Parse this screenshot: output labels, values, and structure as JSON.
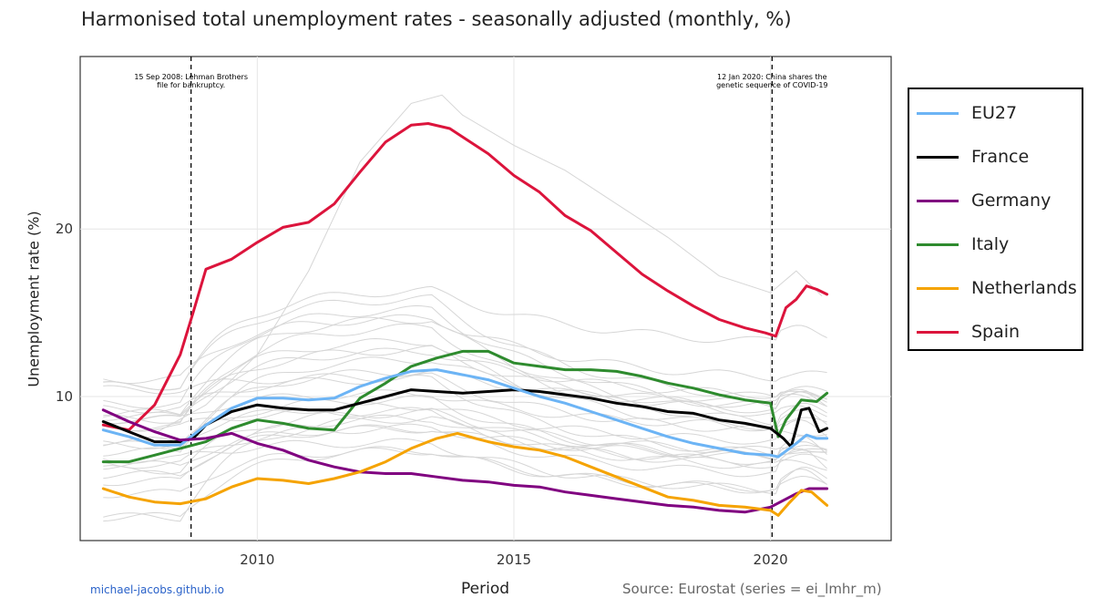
{
  "chart_data": {
    "type": "line",
    "title": "Harmonised total unemployment rates - seasonally adjusted (monthly, %)",
    "xlabel": "Period",
    "ylabel": "Unemployment rate (%)",
    "source": "Source: Eurostat (series = ei_lmhr_m)",
    "site": "michael-jacobs.github.io",
    "xlim": [
      2006.55,
      2022.35
    ],
    "ylim": [
      1.4,
      30.3
    ],
    "x_ticks": [
      {
        "value": 2010,
        "label": "2010"
      },
      {
        "value": 2015,
        "label": "2015"
      },
      {
        "value": 2020,
        "label": "2020"
      }
    ],
    "y_ticks": [
      {
        "value": 10,
        "label": "10"
      },
      {
        "value": 20,
        "label": "20"
      }
    ],
    "grid": true,
    "legend_position": "right",
    "annotations": [
      {
        "x": 2008.71,
        "lines": [
          "15 Sep 2008: Lehman Brothers",
          "file for bankruptcy."
        ]
      },
      {
        "x": 2020.03,
        "lines": [
          "12 Jan 2020: China shares the",
          "genetic sequence of COVID-19"
        ]
      }
    ],
    "series": [
      {
        "name": "Spain",
        "color": "#dc143c",
        "points": [
          [
            2007.0,
            8.3
          ],
          [
            2007.5,
            8.0
          ],
          [
            2008.0,
            9.5
          ],
          [
            2008.5,
            12.5
          ],
          [
            2008.75,
            15.0
          ],
          [
            2009.0,
            17.6
          ],
          [
            2009.5,
            18.2
          ],
          [
            2010.0,
            19.2
          ],
          [
            2010.5,
            20.1
          ],
          [
            2011.0,
            20.4
          ],
          [
            2011.5,
            21.5
          ],
          [
            2012.0,
            23.4
          ],
          [
            2012.5,
            25.2
          ],
          [
            2013.0,
            26.2
          ],
          [
            2013.33,
            26.3
          ],
          [
            2013.75,
            26.0
          ],
          [
            2014.0,
            25.5
          ],
          [
            2014.5,
            24.5
          ],
          [
            2015.0,
            23.2
          ],
          [
            2015.5,
            22.2
          ],
          [
            2016.0,
            20.8
          ],
          [
            2016.5,
            19.9
          ],
          [
            2017.0,
            18.6
          ],
          [
            2017.5,
            17.3
          ],
          [
            2018.0,
            16.3
          ],
          [
            2018.5,
            15.4
          ],
          [
            2019.0,
            14.6
          ],
          [
            2019.5,
            14.1
          ],
          [
            2019.9,
            13.8
          ],
          [
            2020.1,
            13.6
          ],
          [
            2020.3,
            15.3
          ],
          [
            2020.5,
            15.8
          ],
          [
            2020.7,
            16.6
          ],
          [
            2020.9,
            16.4
          ],
          [
            2021.1,
            16.1
          ]
        ]
      },
      {
        "name": "Italy",
        "color": "#2e8b2e",
        "points": [
          [
            2007.0,
            6.1
          ],
          [
            2007.5,
            6.1
          ],
          [
            2008.0,
            6.5
          ],
          [
            2008.5,
            6.9
          ],
          [
            2009.0,
            7.3
          ],
          [
            2009.5,
            8.1
          ],
          [
            2010.0,
            8.6
          ],
          [
            2010.5,
            8.4
          ],
          [
            2011.0,
            8.1
          ],
          [
            2011.5,
            8.0
          ],
          [
            2012.0,
            9.9
          ],
          [
            2012.5,
            10.8
          ],
          [
            2013.0,
            11.8
          ],
          [
            2013.5,
            12.3
          ],
          [
            2014.0,
            12.7
          ],
          [
            2014.5,
            12.7
          ],
          [
            2015.0,
            12.0
          ],
          [
            2015.5,
            11.8
          ],
          [
            2016.0,
            11.6
          ],
          [
            2016.5,
            11.6
          ],
          [
            2017.0,
            11.5
          ],
          [
            2017.5,
            11.2
          ],
          [
            2018.0,
            10.8
          ],
          [
            2018.5,
            10.5
          ],
          [
            2019.0,
            10.1
          ],
          [
            2019.5,
            9.8
          ],
          [
            2020.0,
            9.6
          ],
          [
            2020.15,
            7.6
          ],
          [
            2020.3,
            8.6
          ],
          [
            2020.6,
            9.8
          ],
          [
            2020.9,
            9.7
          ],
          [
            2021.1,
            10.2
          ]
        ]
      },
      {
        "name": "France",
        "color": "#000000",
        "points": [
          [
            2007.0,
            8.5
          ],
          [
            2007.5,
            7.9
          ],
          [
            2008.0,
            7.3
          ],
          [
            2008.5,
            7.3
          ],
          [
            2008.75,
            7.5
          ],
          [
            2009.0,
            8.3
          ],
          [
            2009.5,
            9.1
          ],
          [
            2010.0,
            9.5
          ],
          [
            2010.5,
            9.3
          ],
          [
            2011.0,
            9.2
          ],
          [
            2011.5,
            9.2
          ],
          [
            2012.0,
            9.6
          ],
          [
            2012.5,
            10.0
          ],
          [
            2013.0,
            10.4
          ],
          [
            2013.5,
            10.3
          ],
          [
            2014.0,
            10.2
          ],
          [
            2014.5,
            10.3
          ],
          [
            2015.0,
            10.4
          ],
          [
            2015.5,
            10.3
          ],
          [
            2016.0,
            10.1
          ],
          [
            2016.5,
            9.9
          ],
          [
            2017.0,
            9.6
          ],
          [
            2017.5,
            9.4
          ],
          [
            2018.0,
            9.1
          ],
          [
            2018.5,
            9.0
          ],
          [
            2019.0,
            8.6
          ],
          [
            2019.5,
            8.4
          ],
          [
            2020.0,
            8.1
          ],
          [
            2020.25,
            7.5
          ],
          [
            2020.4,
            7.0
          ],
          [
            2020.6,
            9.2
          ],
          [
            2020.75,
            9.3
          ],
          [
            2020.95,
            7.9
          ],
          [
            2021.1,
            8.1
          ]
        ]
      },
      {
        "name": "EU27",
        "color": "#6cb4f5",
        "points": [
          [
            2007.0,
            8.0
          ],
          [
            2007.5,
            7.6
          ],
          [
            2008.0,
            7.1
          ],
          [
            2008.5,
            7.1
          ],
          [
            2009.0,
            8.3
          ],
          [
            2009.5,
            9.3
          ],
          [
            2010.0,
            9.9
          ],
          [
            2010.5,
            9.9
          ],
          [
            2011.0,
            9.8
          ],
          [
            2011.5,
            9.9
          ],
          [
            2012.0,
            10.6
          ],
          [
            2012.5,
            11.1
          ],
          [
            2013.0,
            11.5
          ],
          [
            2013.5,
            11.6
          ],
          [
            2014.0,
            11.3
          ],
          [
            2014.5,
            11.0
          ],
          [
            2015.0,
            10.5
          ],
          [
            2015.5,
            10.0
          ],
          [
            2016.0,
            9.6
          ],
          [
            2016.5,
            9.1
          ],
          [
            2017.0,
            8.6
          ],
          [
            2017.5,
            8.1
          ],
          [
            2018.0,
            7.6
          ],
          [
            2018.5,
            7.2
          ],
          [
            2019.0,
            6.9
          ],
          [
            2019.5,
            6.6
          ],
          [
            2020.0,
            6.5
          ],
          [
            2020.15,
            6.4
          ],
          [
            2020.5,
            7.2
          ],
          [
            2020.7,
            7.7
          ],
          [
            2020.9,
            7.5
          ],
          [
            2021.1,
            7.5
          ]
        ]
      },
      {
        "name": "Germany",
        "color": "#800080",
        "points": [
          [
            2007.0,
            9.2
          ],
          [
            2007.5,
            8.5
          ],
          [
            2008.0,
            7.9
          ],
          [
            2008.5,
            7.4
          ],
          [
            2009.0,
            7.5
          ],
          [
            2009.5,
            7.8
          ],
          [
            2010.0,
            7.2
          ],
          [
            2010.5,
            6.8
          ],
          [
            2011.0,
            6.2
          ],
          [
            2011.5,
            5.8
          ],
          [
            2012.0,
            5.5
          ],
          [
            2012.5,
            5.4
          ],
          [
            2013.0,
            5.4
          ],
          [
            2013.5,
            5.2
          ],
          [
            2014.0,
            5.0
          ],
          [
            2014.5,
            4.9
          ],
          [
            2015.0,
            4.7
          ],
          [
            2015.5,
            4.6
          ],
          [
            2016.0,
            4.3
          ],
          [
            2016.5,
            4.1
          ],
          [
            2017.0,
            3.9
          ],
          [
            2017.5,
            3.7
          ],
          [
            2018.0,
            3.5
          ],
          [
            2018.5,
            3.4
          ],
          [
            2019.0,
            3.2
          ],
          [
            2019.5,
            3.1
          ],
          [
            2020.0,
            3.4
          ],
          [
            2020.5,
            4.2
          ],
          [
            2020.75,
            4.5
          ],
          [
            2021.1,
            4.5
          ]
        ]
      },
      {
        "name": "Netherlands",
        "color": "#f5a300",
        "points": [
          [
            2007.0,
            4.5
          ],
          [
            2007.5,
            4.0
          ],
          [
            2008.0,
            3.7
          ],
          [
            2008.5,
            3.6
          ],
          [
            2009.0,
            3.9
          ],
          [
            2009.5,
            4.6
          ],
          [
            2010.0,
            5.1
          ],
          [
            2010.5,
            5.0
          ],
          [
            2011.0,
            4.8
          ],
          [
            2011.5,
            5.1
          ],
          [
            2012.0,
            5.5
          ],
          [
            2012.5,
            6.1
          ],
          [
            2013.0,
            6.9
          ],
          [
            2013.5,
            7.5
          ],
          [
            2013.9,
            7.8
          ],
          [
            2014.25,
            7.5
          ],
          [
            2014.5,
            7.3
          ],
          [
            2015.0,
            7.0
          ],
          [
            2015.5,
            6.8
          ],
          [
            2016.0,
            6.4
          ],
          [
            2016.5,
            5.8
          ],
          [
            2017.0,
            5.2
          ],
          [
            2017.5,
            4.6
          ],
          [
            2018.0,
            4.0
          ],
          [
            2018.5,
            3.8
          ],
          [
            2019.0,
            3.5
          ],
          [
            2019.5,
            3.4
          ],
          [
            2020.0,
            3.2
          ],
          [
            2020.15,
            2.9
          ],
          [
            2020.35,
            3.6
          ],
          [
            2020.6,
            4.4
          ],
          [
            2020.8,
            4.3
          ],
          [
            2021.1,
            3.5
          ]
        ]
      }
    ],
    "legend_order": [
      "EU27",
      "France",
      "Germany",
      "Italy",
      "Netherlands",
      "Spain"
    ]
  }
}
